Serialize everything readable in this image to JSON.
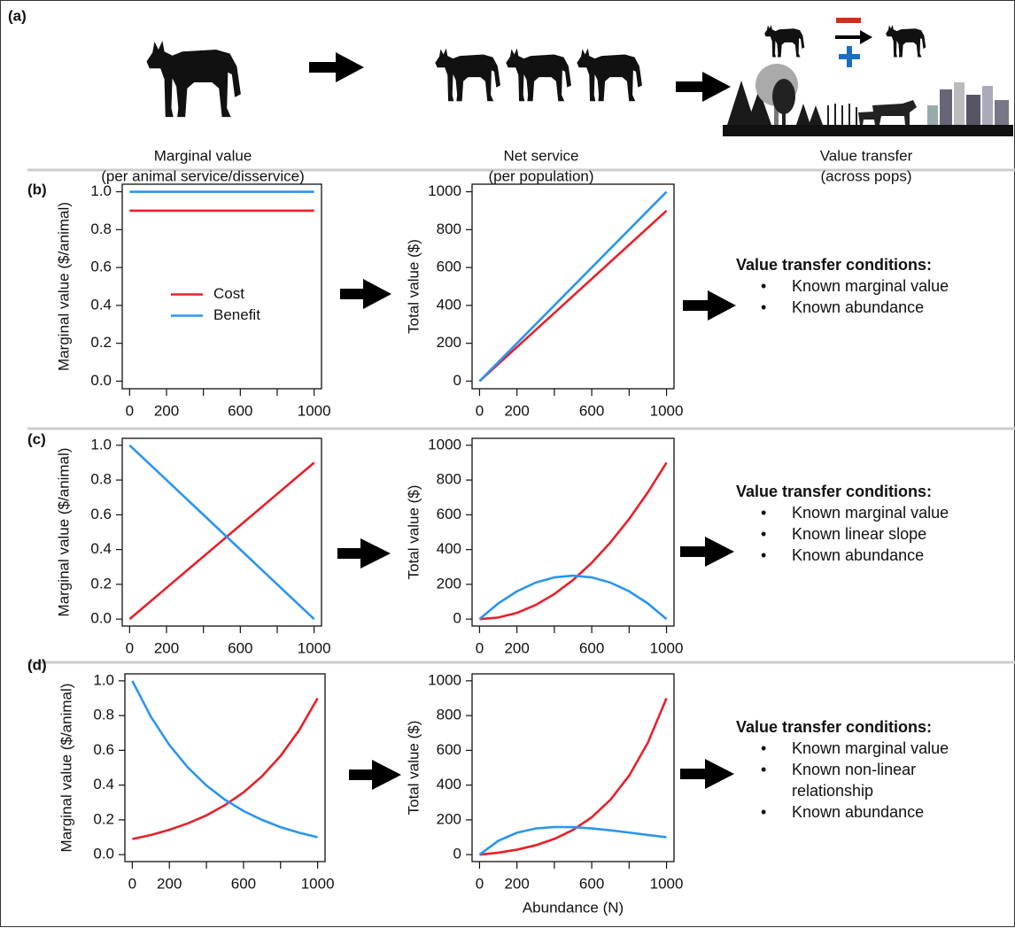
{
  "panel_labels": [
    "(a)",
    "(b)",
    "(c)",
    "(d)"
  ],
  "captions": [
    [
      "Marginal value",
      "(per animal service/disservice)"
    ],
    [
      "Net service",
      "(per population)"
    ],
    [
      "Value transfer",
      "(across pops)"
    ]
  ],
  "conditions": [
    {
      "heading": "Value transfer conditions:",
      "items": [
        "Known marginal value",
        "Known abundance"
      ]
    },
    {
      "heading": "Value transfer conditions:",
      "items": [
        "Known marginal value",
        "Known linear slope",
        "Known abundance"
      ]
    },
    {
      "heading": "Value transfer conditions:",
      "items": [
        "Known marginal value",
        "Known non-linear relationship",
        "Known abundance"
      ]
    }
  ],
  "chart_data": [
    {
      "type": "line",
      "ylabel": "Marginal value ($/animal)",
      "x": [
        0,
        1000
      ],
      "xlim": [
        0,
        1000
      ],
      "xticks": [
        0,
        200,
        {
          "value": 400,
          "label": null
        },
        600,
        {
          "value": 800,
          "label": null
        },
        1000
      ],
      "ylim": [
        0,
        1
      ],
      "yticks": [
        {
          "value": 0,
          "label": "0.0"
        },
        {
          "value": 0.2,
          "label": "0.2"
        },
        {
          "value": 0.4,
          "label": "0.4"
        },
        {
          "value": 0.6,
          "label": "0.6"
        },
        {
          "value": 0.8,
          "label": "0.8"
        },
        {
          "value": 1,
          "label": "1.0"
        }
      ],
      "legend": "center-left",
      "series": [
        {
          "name": "Cost",
          "color": "#e8202a",
          "values": [
            0.9,
            0.9
          ]
        },
        {
          "name": "Benefit",
          "color": "#2b95ee",
          "values": [
            1,
            1
          ]
        }
      ]
    },
    {
      "type": "line",
      "ylabel": "Total value ($)",
      "x": [
        0,
        1000
      ],
      "xlim": [
        0,
        1000
      ],
      "xticks": [
        0,
        200,
        {
          "value": 400,
          "label": null
        },
        600,
        {
          "value": 800,
          "label": null
        },
        1000
      ],
      "ylim": [
        0,
        1000
      ],
      "yticks": [
        0,
        200,
        400,
        600,
        800,
        1000
      ],
      "series": [
        {
          "color": "#e8202a",
          "values": [
            0,
            900
          ]
        },
        {
          "color": "#2b95ee",
          "values": [
            0,
            1000
          ]
        }
      ]
    },
    {
      "type": "line",
      "ylabel": "Marginal value ($/animal)",
      "x": [
        0,
        100,
        200,
        300,
        400,
        500,
        600,
        700,
        800,
        900,
        1000
      ],
      "xlim": [
        0,
        1000
      ],
      "xticks": [
        0,
        200,
        {
          "value": 400,
          "label": null
        },
        600,
        {
          "value": 800,
          "label": null
        },
        1000
      ],
      "ylim": [
        0,
        1
      ],
      "yticks": [
        {
          "value": 0,
          "label": "0.0"
        },
        {
          "value": 0.2,
          "label": "0.2"
        },
        {
          "value": 0.4,
          "label": "0.4"
        },
        {
          "value": 0.6,
          "label": "0.6"
        },
        {
          "value": 0.8,
          "label": "0.8"
        },
        {
          "value": 1,
          "label": "1.0"
        }
      ],
      "series": [
        {
          "color": "#e8202a",
          "values": [
            0,
            0.09,
            0.18,
            0.27,
            0.36,
            0.45,
            0.54,
            0.63,
            0.72,
            0.81,
            0.9
          ]
        },
        {
          "color": "#2b95ee",
          "values": [
            1,
            0.9,
            0.8,
            0.7,
            0.6,
            0.5,
            0.4,
            0.3,
            0.2,
            0.1,
            0
          ]
        }
      ]
    },
    {
      "type": "line",
      "ylabel": "Total value ($)",
      "x": [
        0,
        100,
        200,
        300,
        400,
        500,
        600,
        700,
        800,
        900,
        1000
      ],
      "xlim": [
        0,
        1000
      ],
      "xticks": [
        0,
        200,
        {
          "value": 400,
          "label": null
        },
        600,
        {
          "value": 800,
          "label": null
        },
        1000
      ],
      "ylim": [
        0,
        1000
      ],
      "yticks": [
        0,
        200,
        400,
        600,
        800,
        1000
      ],
      "series": [
        {
          "color": "#e8202a",
          "values": [
            0,
            9,
            36,
            81,
            144,
            225,
            324,
            441,
            576,
            729,
            900
          ]
        },
        {
          "color": "#2b95ee",
          "values": [
            0,
            90,
            160,
            210,
            240,
            250,
            240,
            210,
            160,
            90,
            0
          ]
        }
      ]
    },
    {
      "type": "line",
      "ylabel": "Marginal value ($/animal)",
      "x": [
        0,
        100,
        200,
        300,
        400,
        500,
        600,
        700,
        800,
        900,
        1000
      ],
      "xlim": [
        0,
        1000
      ],
      "xticks": [
        0,
        200,
        {
          "value": 400,
          "label": null
        },
        600,
        {
          "value": 800,
          "label": null
        },
        1000
      ],
      "ylim": [
        0,
        1
      ],
      "yticks": [
        {
          "value": 0,
          "label": "0.0"
        },
        {
          "value": 0.2,
          "label": "0.2"
        },
        {
          "value": 0.4,
          "label": "0.4"
        },
        {
          "value": 0.6,
          "label": "0.6"
        },
        {
          "value": 0.8,
          "label": "0.8"
        },
        {
          "value": 1,
          "label": "1.0"
        }
      ],
      "series": [
        {
          "color": "#e8202a",
          "values": [
            0.09,
            0.113,
            0.143,
            0.18,
            0.226,
            0.285,
            0.358,
            0.451,
            0.568,
            0.715,
            0.9
          ]
        },
        {
          "color": "#2b95ee",
          "values": [
            1,
            0.794,
            0.631,
            0.501,
            0.398,
            0.316,
            0.251,
            0.2,
            0.158,
            0.126,
            0.1
          ]
        }
      ]
    },
    {
      "type": "line",
      "ylabel": "Total value ($)",
      "xlabel": "Abundance (N)",
      "x": [
        0,
        100,
        200,
        300,
        400,
        500,
        600,
        700,
        800,
        900,
        1000
      ],
      "xlim": [
        0,
        1000
      ],
      "xticks": [
        0,
        200,
        {
          "value": 400,
          "label": null
        },
        600,
        {
          "value": 800,
          "label": null
        },
        1000
      ],
      "ylim": [
        0,
        1000
      ],
      "yticks": [
        0,
        200,
        400,
        600,
        800,
        1000
      ],
      "series": [
        {
          "color": "#e8202a",
          "values": [
            0,
            11.3,
            28.5,
            53.9,
            90.4,
            142.3,
            215,
            315.8,
            454.3,
            643.4,
            900
          ]
        },
        {
          "color": "#2b95ee",
          "values": [
            0,
            79.4,
            126.2,
            150.4,
            159.2,
            158.1,
            150.7,
            139.7,
            126.8,
            113.3,
            100
          ]
        }
      ]
    }
  ]
}
